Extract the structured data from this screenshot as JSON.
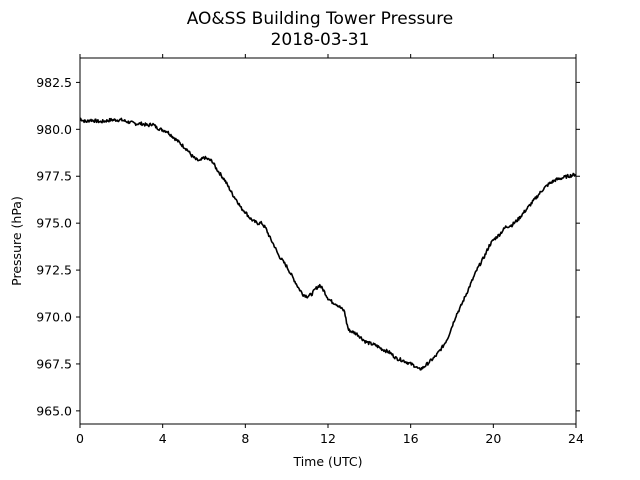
{
  "chart_data": {
    "type": "line",
    "title": "AO&SS Building Tower Pressure",
    "subtitle": "2018-03-31",
    "xlabel": "Time (UTC)",
    "ylabel": "Pressure (hPa)",
    "xlim": [
      0,
      24
    ],
    "ylim": [
      964.3,
      983.8
    ],
    "x_ticks": [
      0,
      4,
      8,
      12,
      16,
      20,
      24
    ],
    "x_tick_labels": [
      "0",
      "4",
      "8",
      "12",
      "16",
      "20",
      "24"
    ],
    "y_ticks": [
      965.0,
      967.5,
      970.0,
      972.5,
      975.0,
      977.5,
      980.0,
      982.5
    ],
    "y_tick_labels": [
      "965.0",
      "967.5",
      "970.0",
      "972.5",
      "975.0",
      "977.5",
      "980.0",
      "982.5"
    ],
    "grid": false,
    "line_color": "#000000",
    "series": [
      {
        "x": [
          0,
          0.1,
          0.3,
          0.5,
          1.0,
          1.5,
          2.0,
          2.3,
          2.7,
          3.0,
          3.3,
          3.5,
          3.7,
          3.9,
          4.2,
          4.5,
          4.8,
          5.0,
          5.2,
          5.4,
          5.6,
          5.8,
          6.0,
          6.2,
          6.4,
          6.6,
          6.8,
          7.0,
          7.2,
          7.4,
          7.6,
          7.8,
          8.0,
          8.2,
          8.4,
          8.6,
          8.8,
          9.0,
          9.2,
          9.4,
          9.6,
          9.8,
          10.0,
          10.2,
          10.4,
          10.6,
          10.8,
          11.0,
          11.2,
          11.4,
          11.6,
          11.8,
          12.0,
          12.2,
          12.4,
          12.6,
          12.8,
          12.9,
          13.0,
          13.2,
          13.4,
          13.6,
          13.8,
          14.0,
          14.3,
          14.6,
          15.0,
          15.3,
          15.6,
          16.0,
          16.2,
          16.4,
          16.6,
          16.8,
          17.0,
          17.2,
          17.4,
          17.6,
          17.8,
          18.0,
          18.2,
          18.4,
          18.6,
          18.8,
          19.0,
          19.2,
          19.4,
          19.6,
          19.8,
          20.0,
          20.3,
          20.6,
          20.9,
          21.2,
          21.5,
          21.8,
          22.1,
          22.4,
          22.7,
          23.0,
          23.3,
          23.6,
          24.0
        ],
        "y": [
          980.6,
          980.5,
          980.4,
          980.5,
          980.4,
          980.5,
          980.5,
          980.4,
          980.3,
          980.3,
          980.2,
          980.3,
          980.1,
          980.0,
          979.9,
          979.6,
          979.3,
          979.1,
          978.9,
          978.6,
          978.4,
          978.3,
          978.5,
          978.4,
          978.3,
          977.9,
          977.6,
          977.3,
          976.9,
          976.5,
          976.2,
          975.8,
          975.6,
          975.3,
          975.1,
          975.0,
          975.0,
          974.7,
          974.2,
          973.8,
          973.3,
          973.0,
          972.7,
          972.3,
          971.9,
          971.5,
          971.2,
          971.1,
          971.2,
          971.5,
          971.7,
          971.4,
          971.0,
          970.8,
          970.7,
          970.5,
          970.3,
          969.7,
          969.3,
          969.2,
          969.1,
          968.9,
          968.7,
          968.6,
          968.5,
          968.3,
          968.1,
          967.8,
          967.7,
          967.5,
          967.4,
          967.2,
          967.3,
          967.5,
          967.7,
          967.9,
          968.2,
          968.5,
          968.9,
          969.5,
          970.1,
          970.5,
          971.0,
          971.5,
          972.0,
          972.5,
          972.9,
          973.3,
          973.8,
          974.1,
          974.4,
          974.8,
          974.9,
          975.2,
          975.6,
          976.0,
          976.4,
          976.8,
          977.1,
          977.3,
          977.4,
          977.5,
          977.6
        ]
      }
    ]
  }
}
